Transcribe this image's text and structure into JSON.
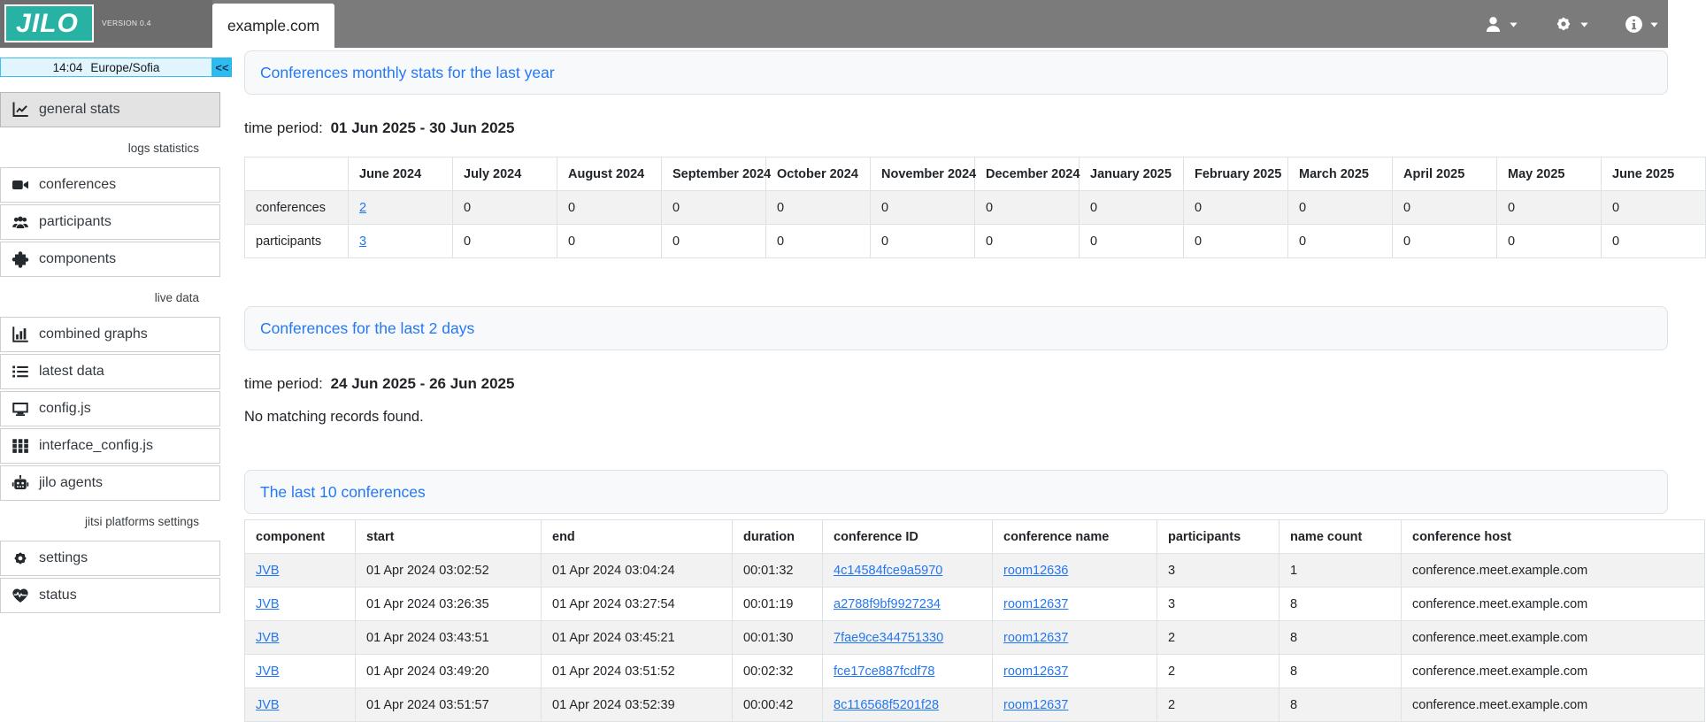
{
  "accent_blue": "#2277f3",
  "brand_teal": "#27b2a4",
  "header": {
    "logo_text": "JILO",
    "version": "VERSION 0.4",
    "tab": "example.com"
  },
  "sidebar": {
    "time": "14:04",
    "timezone": "Europe/Sofia",
    "collapse_label": "<<",
    "items": [
      {
        "type": "item",
        "icon": "chart-line-icon",
        "label": "general stats",
        "active": true
      },
      {
        "type": "section",
        "label": "logs statistics"
      },
      {
        "type": "item",
        "icon": "video-camera-icon",
        "label": "conferences"
      },
      {
        "type": "item",
        "icon": "users-icon",
        "label": "participants"
      },
      {
        "type": "item",
        "icon": "puzzle-piece-icon",
        "label": "components"
      },
      {
        "type": "section",
        "label": "live data"
      },
      {
        "type": "item",
        "icon": "chart-column-icon",
        "label": "combined graphs"
      },
      {
        "type": "item",
        "icon": "list-icon",
        "label": "latest data"
      },
      {
        "type": "item",
        "icon": "desktop-icon",
        "label": "config.js"
      },
      {
        "type": "item",
        "icon": "grid-cells-icon",
        "label": "interface_config.js"
      },
      {
        "type": "item",
        "icon": "robot-icon",
        "label": "jilo agents"
      },
      {
        "type": "section",
        "label": "jitsi platforms settings"
      },
      {
        "type": "item",
        "icon": "gear-icon",
        "label": "settings"
      },
      {
        "type": "item",
        "icon": "heart-pulse-icon",
        "label": "status"
      }
    ]
  },
  "monthly": {
    "title": "Conferences monthly stats for the last year",
    "time_period_label": "time period:",
    "time_period": "01 Jun 2025 - 30 Jun 2025",
    "columns": [
      "June 2024",
      "July 2024",
      "August 2024",
      "September 2024",
      "October 2024",
      "November 2024",
      "December 2024",
      "January 2025",
      "February 2025",
      "March 2025",
      "April 2025",
      "May 2025",
      "June 2025"
    ],
    "rows": [
      {
        "label": "conferences",
        "values": [
          "2",
          "0",
          "0",
          "0",
          "0",
          "0",
          "0",
          "0",
          "0",
          "0",
          "0",
          "0",
          "0"
        ],
        "first_is_link": true
      },
      {
        "label": "participants",
        "values": [
          "3",
          "0",
          "0",
          "0",
          "0",
          "0",
          "0",
          "0",
          "0",
          "0",
          "0",
          "0",
          "0"
        ],
        "first_is_link": true
      }
    ]
  },
  "recent": {
    "title": "Conferences for the last 2 days",
    "time_period_label": "time period:",
    "time_period": "24 Jun 2025 - 26 Jun 2025",
    "empty_message": "No matching records found."
  },
  "last10": {
    "title": "The last 10 conferences",
    "columns": [
      "component",
      "start",
      "end",
      "duration",
      "conference ID",
      "conference name",
      "participants",
      "name count",
      "conference host"
    ],
    "link_columns": [
      0,
      4,
      5
    ],
    "rows": [
      [
        "JVB",
        "01 Apr 2024 03:02:52",
        "01 Apr 2024 03:04:24",
        "00:01:32",
        "4c14584fce9a5970",
        "room12636",
        "3",
        "1",
        "conference.meet.example.com"
      ],
      [
        "JVB",
        "01 Apr 2024 03:26:35",
        "01 Apr 2024 03:27:54",
        "00:01:19",
        "a2788f9bf9927234",
        "room12637",
        "3",
        "8",
        "conference.meet.example.com"
      ],
      [
        "JVB",
        "01 Apr 2024 03:43:51",
        "01 Apr 2024 03:45:21",
        "00:01:30",
        "7fae9ce344751330",
        "room12637",
        "2",
        "8",
        "conference.meet.example.com"
      ],
      [
        "JVB",
        "01 Apr 2024 03:49:20",
        "01 Apr 2024 03:51:52",
        "00:02:32",
        "fce17ce887fcdf78",
        "room12637",
        "2",
        "8",
        "conference.meet.example.com"
      ],
      [
        "JVB",
        "01 Apr 2024 03:51:57",
        "01 Apr 2024 03:52:39",
        "00:00:42",
        "8c116568f5201f28",
        "room12637",
        "2",
        "8",
        "conference.meet.example.com"
      ]
    ]
  }
}
